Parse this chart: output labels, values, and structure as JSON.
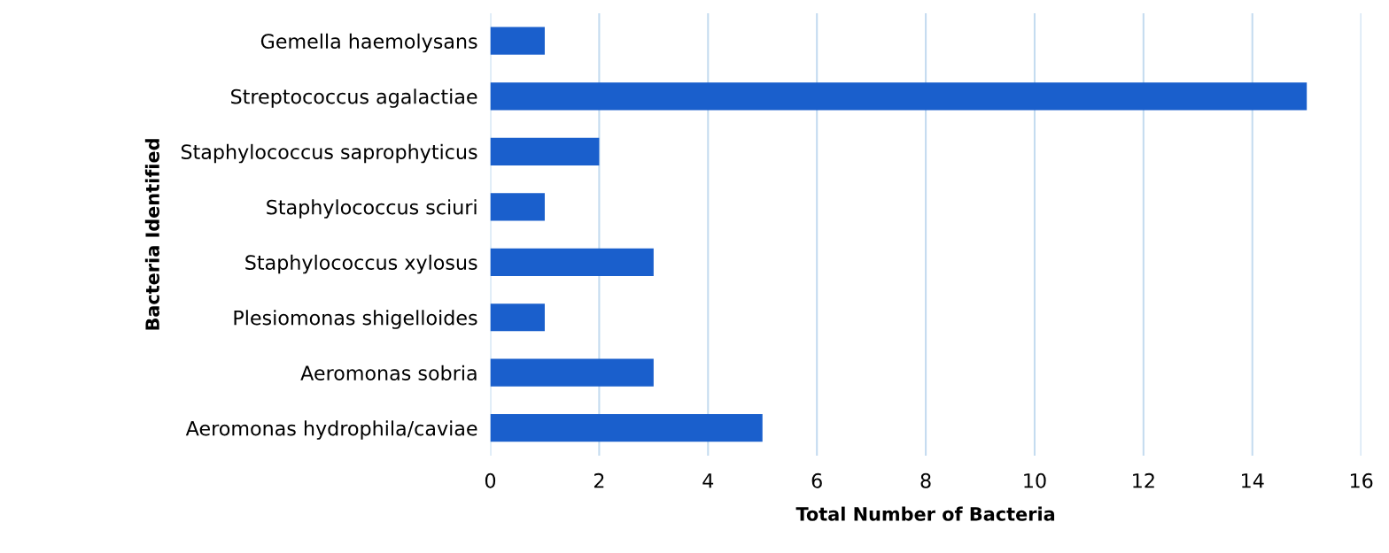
{
  "chart_data": {
    "type": "bar",
    "orientation": "horizontal",
    "xlabel": "Total Number of Bacteria",
    "ylabel": "Bacteria Identified",
    "categories": [
      "Gemella haemolysans",
      "Streptococcus agalactiae",
      "Staphylococcus saprophyticus",
      "Staphylococcus sciuri",
      "Staphylococcus xylosus",
      "Plesiomonas shigelloides",
      "Aeromonas sobria",
      "Aeromonas hydrophila/caviae"
    ],
    "values": [
      1,
      15,
      2,
      1,
      3,
      1,
      3,
      5
    ],
    "color": "#1a5fcc",
    "xlim": [
      0,
      16
    ],
    "xticks": [
      0,
      2,
      4,
      6,
      8,
      10,
      12,
      14,
      16
    ],
    "grid": "x",
    "legend": false
  }
}
